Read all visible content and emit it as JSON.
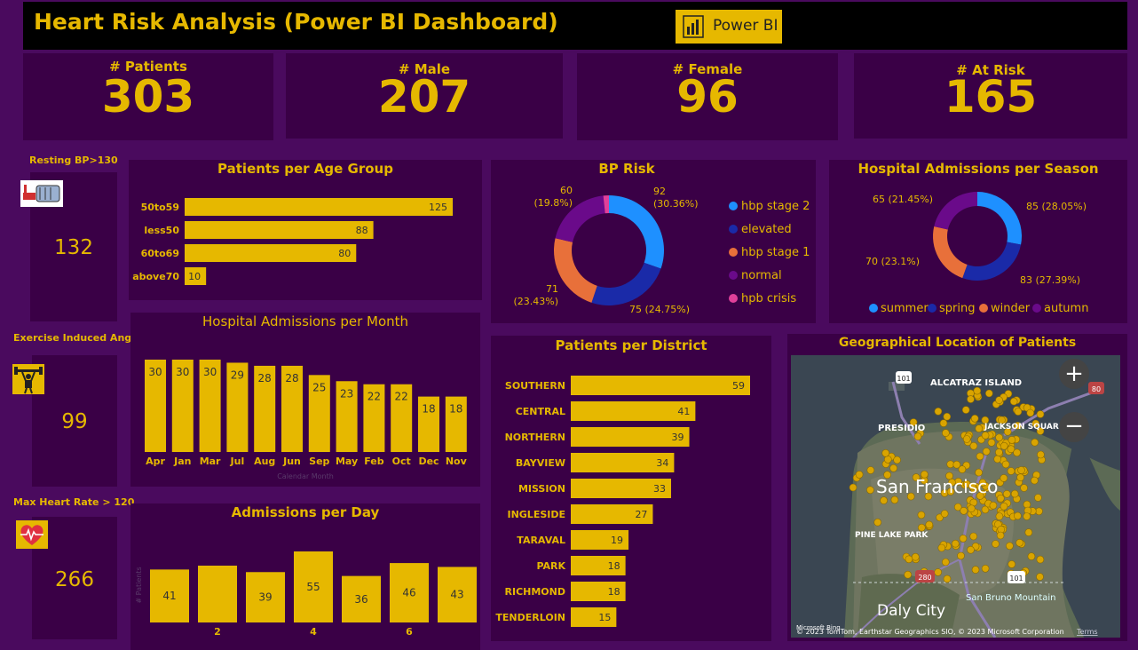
{
  "header": {
    "title": "Heart Risk Analysis (Power BI Dashboard)",
    "logo_label": "Power BI"
  },
  "kpis": [
    {
      "label": "# Patients",
      "value": "303"
    },
    {
      "label": "# Male",
      "value": "207"
    },
    {
      "label": "# Female",
      "value": "96"
    },
    {
      "label": "# At Risk",
      "value": "165"
    }
  ],
  "side_metrics": [
    {
      "label": "Resting BP>130",
      "value": "132",
      "icon": "blood-pressure-icon"
    },
    {
      "label": "Exercise Induced Angina",
      "value": "99",
      "icon": "weightlifting-icon"
    },
    {
      "label": "Max Heart Rate > 120",
      "value": "266",
      "icon": "heart-rate-icon"
    }
  ],
  "colors": {
    "background": "#4a0a5e",
    "panel": "#3a0046",
    "gold": "#e6b800",
    "summer": "#1e90ff",
    "spring": "#1a2aa8",
    "winder": "#e8703a",
    "autumn": "#6a0a8a",
    "hbp_stage_2": "#1e90ff",
    "elevated": "#1a2aa8",
    "hbp_stage_1": "#e8703a",
    "normal": "#6a0a8a",
    "hpb_crisis": "#e0409a"
  },
  "chart_data": [
    {
      "id": "age_group",
      "type": "bar",
      "orientation": "horizontal",
      "title": "Patients per Age Group",
      "categories": [
        "50to59",
        "less50",
        "60to69",
        "above70"
      ],
      "values": [
        125,
        88,
        80,
        10
      ]
    },
    {
      "id": "bp_risk",
      "type": "pie",
      "donut": true,
      "title": "BP Risk",
      "categories": [
        "hbp stage 2",
        "elevated",
        "hbp stage 1",
        "normal",
        "hpb crisis"
      ],
      "values": [
        92,
        75,
        71,
        60,
        5
      ],
      "labels": [
        "92 (30.36%)",
        "75 (24.75%)",
        "71 (23.43%)",
        "60 (19.8%)",
        ""
      ],
      "legend": "right"
    },
    {
      "id": "season",
      "type": "pie",
      "donut": true,
      "title": "Hospital Admissions per Season",
      "categories": [
        "summer",
        "spring",
        "winder",
        "autumn"
      ],
      "values": [
        85,
        83,
        70,
        65
      ],
      "labels": [
        "85 (28.05%)",
        "83 (27.39%)",
        "70 (23.1%)",
        "65 (21.45%)"
      ],
      "legend": "bottom"
    },
    {
      "id": "month",
      "type": "bar",
      "title": "Hospital Admissions per Month",
      "xlabel": "Calendar Month",
      "categories": [
        "Apr",
        "Jan",
        "Mar",
        "Jul",
        "Aug",
        "Jun",
        "Sep",
        "May",
        "Feb",
        "Oct",
        "Dec",
        "Nov"
      ],
      "values": [
        30,
        30,
        30,
        29,
        28,
        28,
        25,
        23,
        22,
        22,
        18,
        18
      ]
    },
    {
      "id": "district",
      "type": "bar",
      "orientation": "horizontal",
      "title": "Patients per District",
      "categories": [
        "SOUTHERN",
        "CENTRAL",
        "NORTHERN",
        "BAYVIEW",
        "MISSION",
        "INGLESIDE",
        "TARAVAL",
        "PARK",
        "RICHMOND",
        "TENDERLOIN"
      ],
      "values": [
        59,
        41,
        39,
        34,
        33,
        27,
        19,
        18,
        18,
        15
      ]
    },
    {
      "id": "day",
      "type": "bar",
      "title": "Admissions per Day",
      "ylabel": "# Patients",
      "categories": [
        "1",
        "2",
        "3",
        "4",
        "5",
        "6",
        "7"
      ],
      "tick_labels": [
        "",
        "2",
        "",
        "4",
        "",
        "6",
        ""
      ],
      "values": [
        41,
        44,
        39,
        55,
        36,
        46,
        43
      ],
      "value_labels": [
        "41",
        "",
        "39",
        "55",
        "36",
        "46",
        "43"
      ]
    }
  ],
  "map": {
    "title": "Geographical Location of Patients",
    "places": {
      "alcatraz": "ALCATRAZ ISLAND",
      "presidio": "PRESIDIO",
      "jackson": "JACKSON SQUARE",
      "sf": "San Francisco",
      "pinelake": "PINE LAKE PARK",
      "daly": "Daly City",
      "sanbruno": "San Bruno Mountain"
    },
    "highways": {
      "h101a": "101",
      "h101b": "101",
      "h80": "80",
      "h280": "280"
    },
    "zoom_in": "+",
    "zoom_out": "−",
    "attribution": "© 2023 TomTom, Earthstar Geographics SIO, © 2023 Microsoft Corporation",
    "terms": "Terms",
    "brand": "Microsoft Bing"
  }
}
